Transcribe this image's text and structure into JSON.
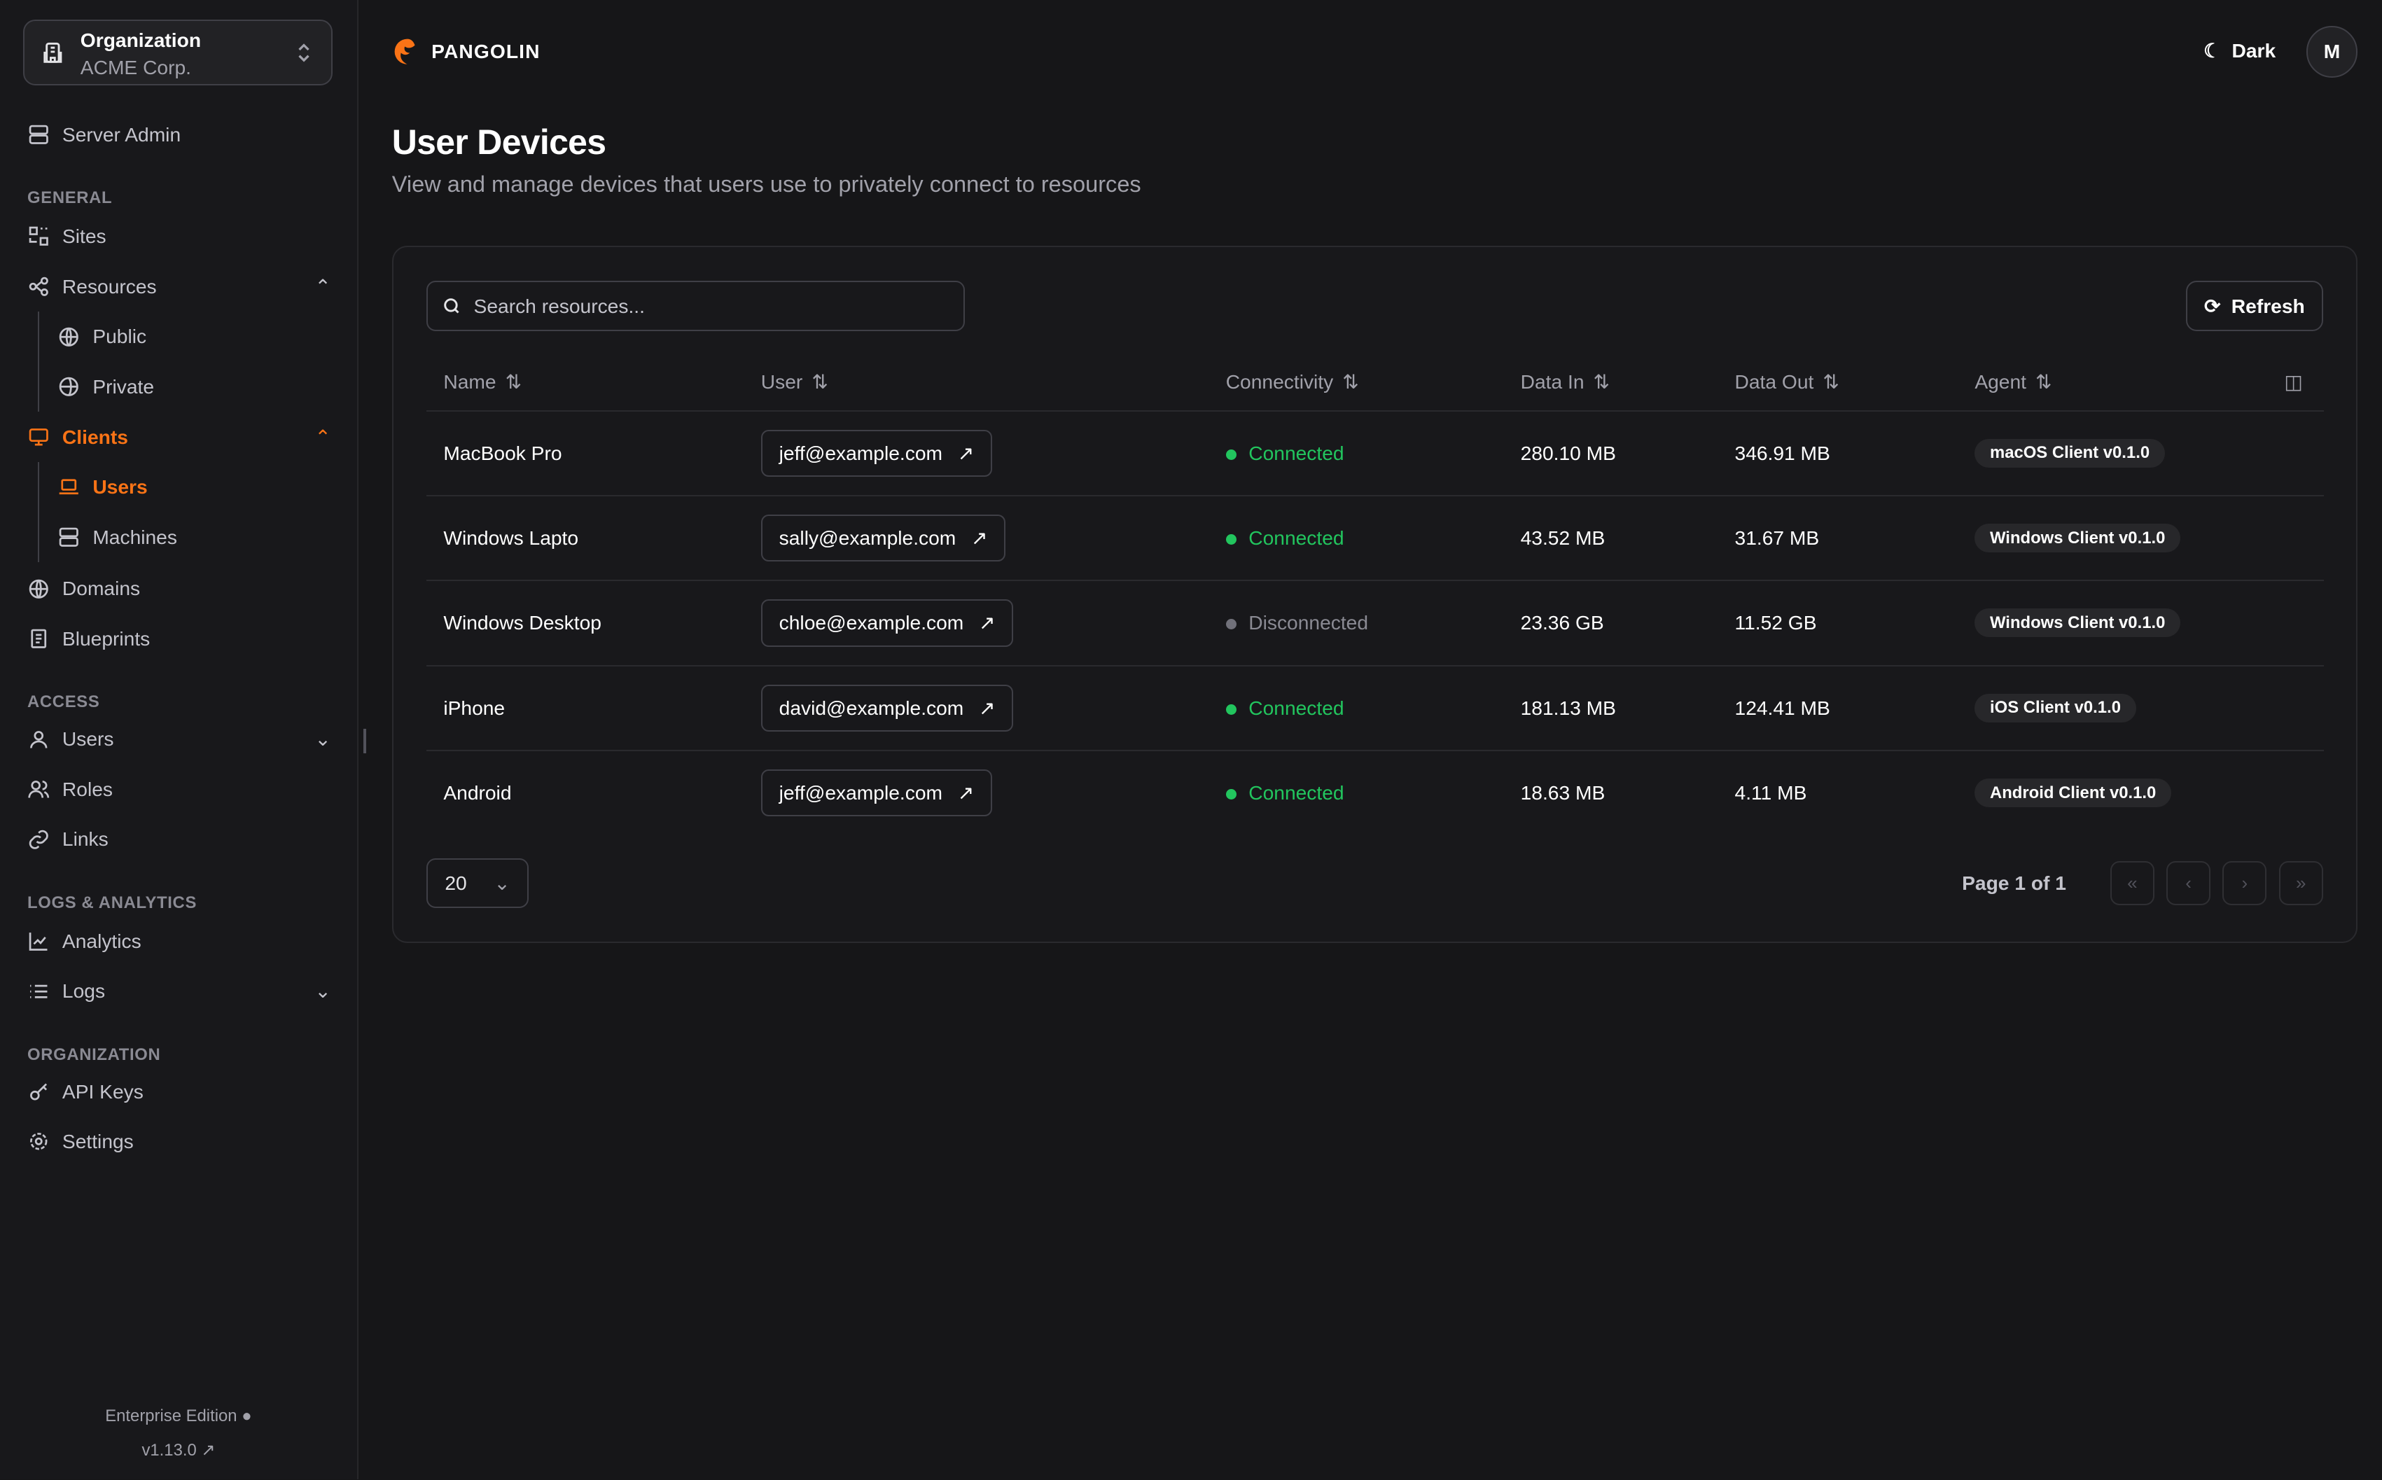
{
  "org": {
    "label": "Organization",
    "name": "ACME Corp."
  },
  "sidebar": {
    "server_admin": "Server Admin",
    "sections": {
      "general": "GENERAL",
      "access": "ACCESS",
      "logs": "LOGS & ANALYTICS",
      "organization": "ORGANIZATION"
    },
    "items": {
      "sites": "Sites",
      "resources": "Resources",
      "public": "Public",
      "private": "Private",
      "clients": "Clients",
      "users": "Users",
      "machines": "Machines",
      "domains": "Domains",
      "blueprints": "Blueprints",
      "access_users": "Users",
      "roles": "Roles",
      "links": "Links",
      "analytics": "Analytics",
      "logs": "Logs",
      "api_keys": "API Keys",
      "settings": "Settings"
    },
    "edition": "Enterprise Edition",
    "version": "v1.13.0"
  },
  "header": {
    "brand": "PANGOLIN",
    "theme": "Dark",
    "avatar": "M"
  },
  "page": {
    "title": "User Devices",
    "subtitle": "View and manage devices that users use to privately connect to resources"
  },
  "toolbar": {
    "search_placeholder": "Search resources...",
    "refresh": "Refresh"
  },
  "table": {
    "columns": [
      "Name",
      "User",
      "Connectivity",
      "Data In",
      "Data Out",
      "Agent"
    ],
    "rows": [
      {
        "name": "MacBook Pro",
        "user": "jeff@example.com",
        "status": "Connected",
        "in": "280.10 MB",
        "out": "346.91 MB",
        "agent": "macOS Client v0.1.0"
      },
      {
        "name": "Windows Lapto",
        "user": "sally@example.com",
        "status": "Connected",
        "in": "43.52 MB",
        "out": "31.67 MB",
        "agent": "Windows Client v0.1.0"
      },
      {
        "name": "Windows Desktop",
        "user": "chloe@example.com",
        "status": "Disconnected",
        "in": "23.36 GB",
        "out": "11.52 GB",
        "agent": "Windows Client v0.1.0"
      },
      {
        "name": "iPhone",
        "user": "david@example.com",
        "status": "Connected",
        "in": "181.13 MB",
        "out": "124.41 MB",
        "agent": "iOS Client v0.1.0"
      },
      {
        "name": "Android",
        "user": "jeff@example.com",
        "status": "Connected",
        "in": "18.63 MB",
        "out": "4.11 MB",
        "agent": "Android Client v0.1.0"
      }
    ]
  },
  "pagination": {
    "page_size": "20",
    "page_info": "Page 1 of 1"
  },
  "colors": {
    "accent": "#f97316",
    "connected": "#22c55e",
    "disconnected": "#71717a"
  }
}
